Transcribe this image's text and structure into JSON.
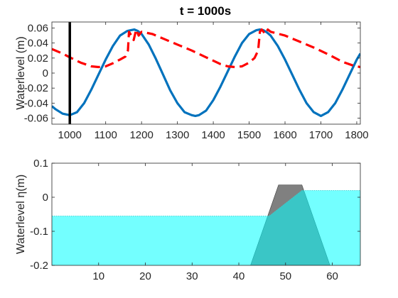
{
  "chart_data": [
    {
      "type": "line",
      "title": "t = 1000s",
      "ylabel": "Waterlevel (m)",
      "xlim": [
        950,
        1810
      ],
      "ylim": [
        -0.068,
        0.068
      ],
      "xticks": [
        1000,
        1100,
        1200,
        1300,
        1400,
        1500,
        1600,
        1700,
        1800
      ],
      "yticks": [
        -0.06,
        -0.04,
        -0.02,
        0,
        0.02,
        0.04,
        0.06
      ],
      "ytick_labels": [
        "-0.06",
        "-0.04",
        "-0.02",
        "0",
        "0.02",
        "0.04",
        "0.06"
      ],
      "grid": false,
      "marker_x": 1000,
      "series": [
        {
          "style": "solid",
          "color": "#0072BD",
          "x": [
            950,
            960,
            980,
            1000,
            1020,
            1040,
            1060,
            1080,
            1100,
            1120,
            1140,
            1160,
            1170,
            1180,
            1190,
            1200,
            1220,
            1240,
            1260,
            1280,
            1300,
            1320,
            1340,
            1350,
            1360,
            1380,
            1400,
            1420,
            1440,
            1460,
            1480,
            1500,
            1520,
            1530,
            1540,
            1550,
            1560,
            1580,
            1600,
            1620,
            1640,
            1660,
            1680,
            1700,
            1720,
            1740,
            1760,
            1780,
            1800,
            1810
          ],
          "y": [
            -0.044,
            -0.048,
            -0.054,
            -0.056,
            -0.052,
            -0.04,
            -0.022,
            -0.002,
            0.018,
            0.036,
            0.05,
            0.056,
            0.057,
            0.058,
            0.056,
            0.052,
            0.038,
            0.019,
            -0.002,
            -0.023,
            -0.04,
            -0.052,
            -0.056,
            -0.057,
            -0.056,
            -0.05,
            -0.036,
            -0.018,
            0.002,
            0.022,
            0.04,
            0.052,
            0.057,
            0.058,
            0.057,
            0.054,
            0.05,
            0.036,
            0.018,
            -0.002,
            -0.022,
            -0.04,
            -0.052,
            -0.057,
            -0.052,
            -0.04,
            -0.022,
            -0.002,
            0.018,
            0.026
          ]
        },
        {
          "style": "dashed",
          "color": "#FF0000",
          "x": [
            950,
            980,
            1000,
            1030,
            1060,
            1080,
            1100,
            1120,
            1140,
            1155,
            1162,
            1165,
            1172,
            1178,
            1185,
            1192,
            1200,
            1230,
            1260,
            1300,
            1340,
            1380,
            1420,
            1440,
            1460,
            1480,
            1500,
            1515,
            1525,
            1530,
            1535,
            1545,
            1552,
            1560,
            1600,
            1640,
            1680,
            1720,
            1760,
            1790,
            1810
          ],
          "y": [
            0.032,
            0.026,
            0.021,
            0.014,
            0.009,
            0.008,
            0.009,
            0.013,
            0.018,
            0.022,
            0.03,
            0.055,
            0.05,
            0.044,
            0.058,
            0.05,
            0.055,
            0.052,
            0.046,
            0.038,
            0.03,
            0.021,
            0.012,
            0.009,
            0.008,
            0.009,
            0.014,
            0.02,
            0.03,
            0.055,
            0.058,
            0.052,
            0.058,
            0.055,
            0.05,
            0.042,
            0.034,
            0.025,
            0.015,
            0.01,
            0.008
          ]
        }
      ]
    },
    {
      "type": "area",
      "ylabel": "Waterlevel η(m)",
      "xlim": [
        0,
        66
      ],
      "ylim": [
        -0.2,
        0.1
      ],
      "xticks": [
        10,
        20,
        30,
        40,
        50,
        60
      ],
      "yticks": [
        -0.2,
        -0.1,
        0,
        0.1
      ],
      "ytick_labels": [
        "-0.2",
        "-0.1",
        "0",
        "0.1"
      ],
      "grid": false,
      "water_color": "#00FFFF",
      "structure_color": "#808080",
      "water_surface": {
        "x": [
          0,
          46.5,
          53.5,
          66
        ],
        "y": [
          -0.055,
          -0.055,
          0.02,
          0.02
        ]
      },
      "structure": {
        "x": [
          42.5,
          48.5,
          53.5,
          59.5
        ],
        "y": [
          -0.2,
          0.036,
          0.036,
          -0.2
        ]
      }
    }
  ]
}
